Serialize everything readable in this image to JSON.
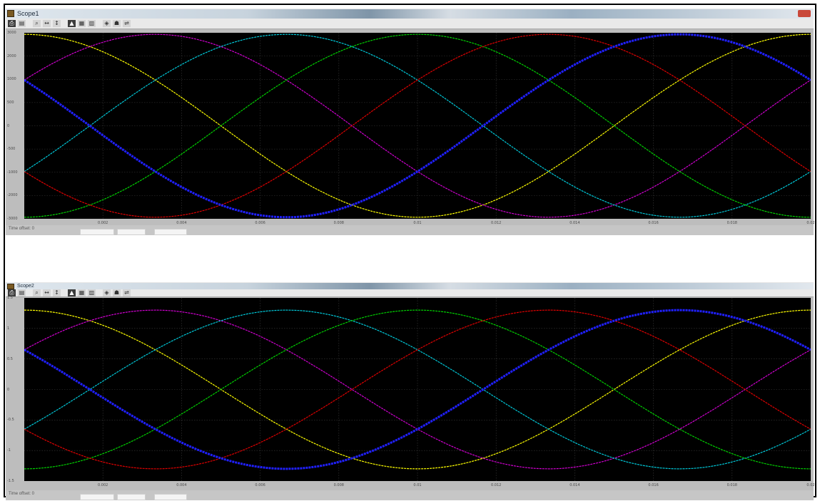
{
  "window_title": "Scope1",
  "scopes": [
    {
      "id": "scope1",
      "title": "Scope1",
      "status": "Time offset: 0",
      "y_ticks": [
        "3000",
        "2000",
        "1000",
        "500",
        "0",
        "-500",
        "-1000",
        "-2000",
        "-3000"
      ],
      "x_ticks": [
        "0.002",
        "0.004",
        "0.006",
        "0.008",
        "0.01",
        "0.012",
        "0.014",
        "0.016",
        "0.018",
        "0.02"
      ]
    },
    {
      "id": "scope2",
      "title": "Scope2",
      "status": "Time offset: 0",
      "y_ticks": [
        "1.5",
        "1",
        "0.5",
        "0",
        "-0.5",
        "-1",
        "-1.5"
      ],
      "x_ticks": [
        "0.002",
        "0.004",
        "0.006",
        "0.008",
        "0.01",
        "0.012",
        "0.014",
        "0.016",
        "0.018",
        "0.02"
      ]
    }
  ],
  "toolbar_icons": [
    "print-icon",
    "params-icon",
    "zoom-in-icon",
    "zoom-x-icon",
    "zoom-y-icon",
    "autoscale-icon",
    "save-axes-icon",
    "restore-axes-icon",
    "floating-scope-icon",
    "lock-axes-icon",
    "signal-selector-icon"
  ],
  "chart_data": [
    {
      "type": "line",
      "ylim": [
        -3000,
        3000
      ],
      "xlim": [
        0,
        0.02
      ],
      "grid": true,
      "series": [
        {
          "color": "#ffff00",
          "frequency_hz": 50,
          "phase_deg": 0
        },
        {
          "color": "#d000d0",
          "frequency_hz": 50,
          "phase_deg": 60
        },
        {
          "color": "#00c8d8",
          "frequency_hz": 50,
          "phase_deg": 120
        },
        {
          "color": "#00d000",
          "frequency_hz": 50,
          "phase_deg": 180
        },
        {
          "color": "#e00000",
          "frequency_hz": 50,
          "phase_deg": 240
        },
        {
          "color": "#2020ff",
          "frequency_hz": 50,
          "phase_deg": 300
        }
      ],
      "amplitude": 2950
    },
    {
      "type": "line",
      "ylim": [
        -1.5,
        1.5
      ],
      "xlim": [
        0,
        0.02
      ],
      "grid": true,
      "series": [
        {
          "color": "#ffff00",
          "frequency_hz": 50,
          "phase_deg": 0
        },
        {
          "color": "#d000d0",
          "frequency_hz": 50,
          "phase_deg": 60
        },
        {
          "color": "#00c8d8",
          "frequency_hz": 50,
          "phase_deg": 120
        },
        {
          "color": "#00d000",
          "frequency_hz": 50,
          "phase_deg": 180
        },
        {
          "color": "#e00000",
          "frequency_hz": 50,
          "phase_deg": 240
        },
        {
          "color": "#2020ff",
          "frequency_hz": 50,
          "phase_deg": 300
        }
      ],
      "amplitude": 1.3
    }
  ]
}
